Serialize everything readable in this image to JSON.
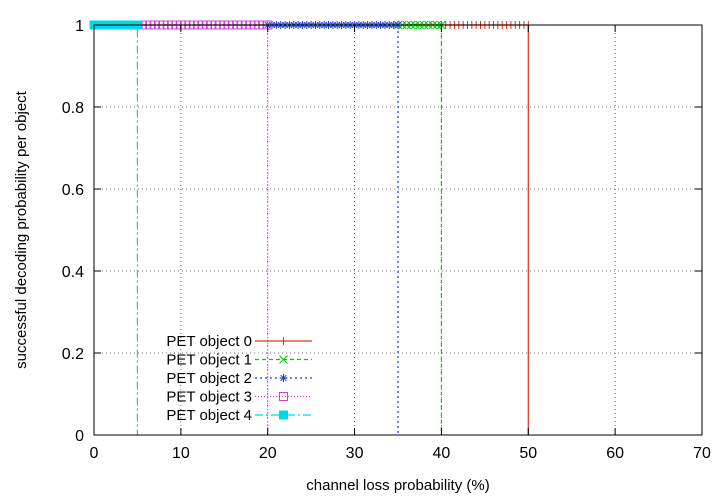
{
  "chart_data": {
    "type": "line",
    "xlabel": "channel loss probability (%)",
    "ylabel": "successful decoding probability per object",
    "xlim": [
      0,
      70
    ],
    "ylim": [
      0,
      1
    ],
    "x_ticks": [
      0,
      10,
      20,
      30,
      40,
      50,
      60,
      70
    ],
    "y_ticks": [
      0,
      0.2,
      0.4,
      0.6,
      0.8,
      1
    ],
    "y_tick_labels": [
      "0",
      "0.2",
      "0.4",
      "0.6",
      "0.8",
      "1"
    ],
    "grid": true,
    "legend_position": "bottom-left",
    "series": [
      {
        "name": "PET object 0",
        "color": "#e0301e",
        "marker": "plus",
        "dash": "",
        "threshold": 50
      },
      {
        "name": "PET object 1",
        "color": "#00cc00",
        "marker": "cross",
        "dash": "4,3",
        "threshold": 40
      },
      {
        "name": "PET object 2",
        "color": "#1a3fe0",
        "marker": "star",
        "dash": "2,3",
        "threshold": 35
      },
      {
        "name": "PET object 3",
        "color": "#d040d8",
        "marker": "open-square",
        "dash": "1,2",
        "threshold": 20
      },
      {
        "name": "PET object 4",
        "color": "#00d8e8",
        "marker": "filled-square",
        "dash": "8,3,2,3",
        "threshold": 5
      }
    ]
  }
}
